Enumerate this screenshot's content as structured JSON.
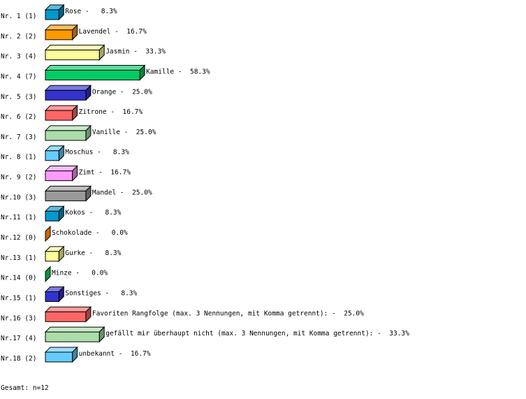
{
  "chart_data": {
    "type": "bar",
    "orientation": "horizontal",
    "style": "3d",
    "grid": false,
    "categories": [
      "Nr. 1 (1)",
      "Nr. 2 (2)",
      "Nr. 3 (4)",
      "Nr. 4 (7)",
      "Nr. 5 (3)",
      "Nr. 6 (2)",
      "Nr. 7 (3)",
      "Nr. 8 (1)",
      "Nr. 9 (2)",
      "Nr.10 (3)",
      "Nr.11 (1)",
      "Nr.12 (0)",
      "Nr.13 (1)",
      "Nr.14 (0)",
      "Nr.15 (1)",
      "Nr.16 (3)",
      "Nr.17 (4)",
      "Nr.18 (2)"
    ],
    "counts": [
      1,
      2,
      4,
      7,
      3,
      2,
      3,
      1,
      2,
      3,
      1,
      0,
      1,
      0,
      1,
      3,
      4,
      2
    ],
    "percent": [
      8.3,
      16.7,
      33.3,
      58.3,
      25.0,
      16.7,
      25.0,
      8.3,
      16.7,
      25.0,
      8.3,
      0.0,
      8.3,
      0.0,
      8.3,
      25.0,
      33.3,
      16.7
    ],
    "labels": [
      "Rose -   8.3%",
      "Lavendel -  16.7%",
      "Jasmin -  33.3%",
      "Kamille -  58.3%",
      "Orange -  25.0%",
      "Zitrone -  16.7%",
      "Vanille -  25.0%",
      "Moschus -   8.3%",
      "Zimt -  16.7%",
      "Mandel -  25.0%",
      "Kokos -   8.3%",
      "Schokolade -   0.0%",
      "Gurke -   8.3%",
      "Minze -   0.0%",
      "Sonstiges -   8.3%",
      "Favoriten Rangfolge (max. 3 Nennungen, mit Komma getrennt): -  25.0%",
      "gefällt mir überhaupt nicht (max. 3 Nennungen, mit Komma getrennt): -  33.3%",
      "unbekannt -  16.7%"
    ],
    "colors": [
      "#0099cc",
      "#ff9900",
      "#ffff99",
      "#00cc66",
      "#3333cc",
      "#ff6666",
      "#aaddaa",
      "#66ccff",
      "#ff99ff",
      "#999999",
      "#0099cc",
      "#cc6600",
      "#ffff99",
      "#009933",
      "#3333cc",
      "#ff6666",
      "#aaddaa",
      "#66ccff"
    ],
    "footer": "Gesamt: n=12"
  }
}
